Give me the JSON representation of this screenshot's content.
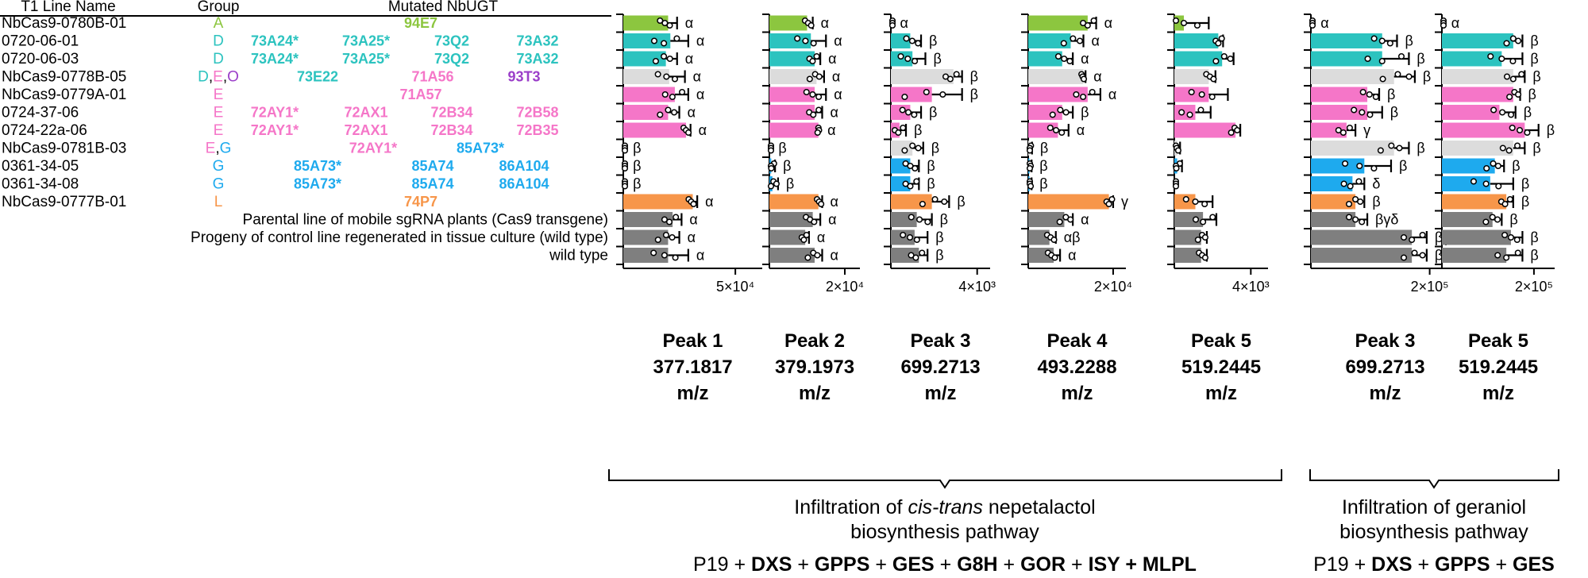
{
  "header": {
    "line_name": "T1 Line Name",
    "group": "Group",
    "mutated": "Mutated NbUGT"
  },
  "colors": {
    "A": "#8cc63f",
    "D": "#2cc3bf",
    "E": "#f576c8",
    "G": "#1eaaee",
    "L": "#f7964a",
    "O": "#9b3fc9",
    "light": "#dcdcdc",
    "dark": "#7f7f7f",
    "black": "#000000"
  },
  "rows": [
    {
      "name": "NbCas9-0780B-01",
      "group": [
        {
          "t": "A",
          "c": "A"
        }
      ],
      "genes": [
        {
          "t": "94E7",
          "c": "A"
        }
      ],
      "colorKey": "A"
    },
    {
      "name": "0720-06-01",
      "group": [
        {
          "t": "D",
          "c": "D"
        }
      ],
      "genes": [
        {
          "t": "73A24*",
          "c": "D"
        },
        {
          "t": "73A25*",
          "c": "D"
        },
        {
          "t": "73Q2",
          "c": "D"
        },
        {
          "t": "73A32",
          "c": "D"
        }
      ],
      "colorKey": "D"
    },
    {
      "name": "0720-06-03",
      "group": [
        {
          "t": "D",
          "c": "D"
        }
      ],
      "genes": [
        {
          "t": "73A24*",
          "c": "D"
        },
        {
          "t": "73A25*",
          "c": "D"
        },
        {
          "t": "73Q2",
          "c": "D"
        },
        {
          "t": "73A32",
          "c": "D"
        }
      ],
      "colorKey": "D"
    },
    {
      "name": "NbCas9-0778B-05",
      "group": [
        {
          "t": "D",
          "c": "D"
        },
        {
          "t": ",",
          "c": "black"
        },
        {
          "t": "E",
          "c": "E"
        },
        {
          "t": ",",
          "c": "black"
        },
        {
          "t": "O",
          "c": "O"
        }
      ],
      "genes": [
        {
          "t": "73E22",
          "c": "D"
        },
        {
          "t": "71A56",
          "c": "E"
        },
        {
          "t": "93T3",
          "c": "O"
        }
      ],
      "colorKey": "light"
    },
    {
      "name": "NbCas9-0779A-01",
      "group": [
        {
          "t": "E",
          "c": "E"
        }
      ],
      "genes": [
        {
          "t": "71A57",
          "c": "E"
        }
      ],
      "colorKey": "E"
    },
    {
      "name": "0724-37-06",
      "group": [
        {
          "t": "E",
          "c": "E"
        }
      ],
      "genes": [
        {
          "t": "72AY1*",
          "c": "E"
        },
        {
          "t": "72AX1",
          "c": "E"
        },
        {
          "t": "72B34",
          "c": "E"
        },
        {
          "t": "72B58",
          "c": "E"
        }
      ],
      "colorKey": "E"
    },
    {
      "name": "0724-22a-06",
      "group": [
        {
          "t": "E",
          "c": "E"
        }
      ],
      "genes": [
        {
          "t": "72AY1*",
          "c": "E"
        },
        {
          "t": "72AX1",
          "c": "E"
        },
        {
          "t": "72B34",
          "c": "E"
        },
        {
          "t": "72B35",
          "c": "E"
        }
      ],
      "colorKey": "E"
    },
    {
      "name": "NbCas9-0781B-03",
      "group": [
        {
          "t": "E",
          "c": "E"
        },
        {
          "t": ",",
          "c": "black"
        },
        {
          "t": "G",
          "c": "G"
        }
      ],
      "genes": [
        {
          "t": "72AY1*",
          "c": "E"
        },
        {
          "t": "85A73*",
          "c": "G"
        }
      ],
      "colorKey": "light"
    },
    {
      "name": "0361-34-05",
      "group": [
        {
          "t": "G",
          "c": "G"
        }
      ],
      "genes": [
        {
          "t": "85A73*",
          "c": "G"
        },
        {
          "t": "85A74",
          "c": "G"
        },
        {
          "t": "86A104",
          "c": "G"
        }
      ],
      "colorKey": "G"
    },
    {
      "name": "0361-34-08",
      "group": [
        {
          "t": "G",
          "c": "G"
        }
      ],
      "genes": [
        {
          "t": "85A73*",
          "c": "G"
        },
        {
          "t": "85A74",
          "c": "G"
        },
        {
          "t": "86A104",
          "c": "G"
        }
      ],
      "colorKey": "G"
    },
    {
      "name": "NbCas9-0777B-01",
      "group": [
        {
          "t": "L",
          "c": "L"
        }
      ],
      "genes": [
        {
          "t": "74P7",
          "c": "L"
        }
      ],
      "colorKey": "L"
    },
    {
      "name": "Parental line of mobile sgRNA plants (Cas9 transgene)",
      "group": [],
      "genes": [],
      "colorKey": "dark"
    },
    {
      "name": "Progeny of control line regenerated in tissue culture (wild type)",
      "group": [],
      "genes": [],
      "colorKey": "dark"
    },
    {
      "name": "wild type",
      "group": [],
      "genes": [],
      "colorKey": "dark"
    }
  ],
  "chart_data": [
    {
      "type": "bar",
      "orientation": "horizontal",
      "title": [
        "Peak 1",
        "377.1817",
        "m/z"
      ],
      "tick_label": "5×10⁴",
      "tick_value": 50000,
      "xlim": [
        0,
        62000
      ],
      "values": [
        20000,
        21000,
        19000,
        20500,
        23000,
        20000,
        28000,
        0,
        0,
        0,
        31000,
        22000,
        20000,
        20000
      ],
      "errors": [
        4000,
        8000,
        5000,
        7000,
        6000,
        5000,
        2000,
        0,
        0,
        0,
        2000,
        4000,
        5000,
        9000
      ],
      "letters": [
        "α",
        "α",
        "α",
        "α",
        "α",
        "α",
        "α",
        "β",
        "β",
        "β",
        "α",
        "α",
        "α",
        "α"
      ]
    },
    {
      "type": "bar",
      "orientation": "horizontal",
      "title": [
        "Peak 2",
        "379.1973",
        "m/z"
      ],
      "tick_label": "2×10⁴",
      "tick_value": 20000,
      "xlim": [
        0,
        24000
      ],
      "values": [
        10000,
        11000,
        12000,
        12500,
        12000,
        12000,
        13000,
        0,
        500,
        800,
        13000,
        11500,
        9500,
        12000
      ],
      "errors": [
        1500,
        4000,
        1500,
        2000,
        3000,
        2000,
        0,
        0,
        1000,
        1500,
        1000,
        2000,
        1000,
        2000
      ],
      "letters": [
        "α",
        "α",
        "α",
        "α",
        "α",
        "α",
        "α",
        "β",
        "β",
        "β",
        "α",
        "α",
        "α",
        "α"
      ]
    },
    {
      "type": "bar",
      "orientation": "horizontal",
      "title": [
        "Peak 3",
        "699.2713",
        "m/z"
      ],
      "tick_label": "4×10³",
      "tick_value": 4000,
      "xlim": [
        0,
        4600
      ],
      "values": [
        0,
        900,
        1000,
        2900,
        1900,
        900,
        400,
        1000,
        900,
        900,
        1900,
        1200,
        1100,
        1300
      ],
      "errors": [
        0,
        500,
        600,
        400,
        1400,
        500,
        300,
        500,
        400,
        400,
        800,
        700,
        600,
        400
      ],
      "letters": [
        "α",
        "β",
        "β",
        "β",
        "β",
        "β",
        "β",
        "β",
        "β",
        "β",
        "β",
        "β",
        "β",
        "β"
      ]
    },
    {
      "type": "bar",
      "orientation": "horizontal",
      "title": [
        "Peak 4",
        "493.2288",
        "m/z"
      ],
      "tick_label": "2×10⁴",
      "tick_value": 20000,
      "xlim": [
        0,
        23000
      ],
      "values": [
        14000,
        10000,
        8000,
        13000,
        14000,
        8000,
        7000,
        300,
        300,
        300,
        19000,
        8500,
        5000,
        6000
      ],
      "errors": [
        2000,
        3000,
        2500,
        500,
        3000,
        2500,
        2500,
        600,
        500,
        500,
        1000,
        2000,
        1500,
        1500
      ],
      "letters": [
        "α",
        "α",
        "α",
        "α",
        "α",
        "β",
        "α",
        "β",
        "β",
        "β",
        "γ",
        "α",
        "αβ",
        "α"
      ]
    },
    {
      "type": "bar",
      "orientation": "horizontal",
      "title": [
        "Peak 5",
        "519.2445",
        "m/z"
      ],
      "tick_label": "4×10³",
      "tick_value": 4000,
      "xlim": [
        0,
        4900
      ],
      "values": [
        500,
        2300,
        2500,
        1800,
        1800,
        1100,
        3200,
        150,
        150,
        0,
        1100,
        1500,
        1400,
        1400
      ],
      "errors": [
        1300,
        250,
        600,
        350,
        1000,
        800,
        250,
        150,
        250,
        0,
        900,
        700,
        300,
        300
      ],
      "letters": [
        "",
        "",
        "",
        "",
        "",
        "",
        "",
        "",
        "",
        "",
        "",
        "",
        "",
        ""
      ]
    },
    {
      "type": "bar",
      "orientation": "horizontal",
      "title": [
        "Peak 3",
        "699.2713",
        "m/z"
      ],
      "tick_label": "2×10⁵",
      "tick_value": 200000,
      "xlim": [
        0,
        250000
      ],
      "values": [
        0,
        120000,
        120000,
        140000,
        95000,
        95000,
        60000,
        140000,
        90000,
        70000,
        75000,
        75000,
        170000,
        170000
      ],
      "errors": [
        0,
        25000,
        45000,
        35000,
        20000,
        25000,
        15000,
        25000,
        45000,
        20000,
        15000,
        20000,
        25000,
        25000
      ],
      "letters": [
        "α",
        "β",
        "β",
        "β",
        "β",
        "β",
        "γ",
        "β",
        "β",
        "δ",
        "β",
        "βγδ",
        "βγδ",
        "β"
      ]
    },
    {
      "type": "bar",
      "orientation": "horizontal",
      "title": [
        "Peak 5",
        "519.2445",
        "m/z"
      ],
      "tick_label": "2×10⁵",
      "tick_value": 200000,
      "xlim": [
        0,
        245000
      ],
      "values": [
        0,
        155000,
        130000,
        155000,
        155000,
        125000,
        180000,
        155000,
        115000,
        105000,
        140000,
        110000,
        150000,
        140000
      ],
      "errors": [
        0,
        20000,
        45000,
        25000,
        15000,
        35000,
        30000,
        25000,
        20000,
        50000,
        15000,
        20000,
        25000,
        35000
      ],
      "letters": [
        "α",
        "β",
        "β",
        "β",
        "β",
        "β",
        "β",
        "β",
        "β",
        "β",
        "β",
        "β",
        "β",
        "β"
      ]
    }
  ],
  "brackets": [
    {
      "line1_pre": "Infiltration of ",
      "line1_italic": "cis-trans",
      "line1_post": " nepetalactol",
      "line2": "biosynthesis pathway",
      "genes": [
        {
          "t": "P19",
          "b": false
        },
        {
          "t": " + ",
          "b": false
        },
        {
          "t": "DXS",
          "b": true
        },
        {
          "t": " + ",
          "b": false
        },
        {
          "t": "GPPS",
          "b": true
        },
        {
          "t": " + ",
          "b": false
        },
        {
          "t": "GES",
          "b": true
        },
        {
          "t": " + ",
          "b": false
        },
        {
          "t": "G8H",
          "b": true
        },
        {
          "t": " + ",
          "b": false
        },
        {
          "t": "GOR",
          "b": true
        },
        {
          "t": " + ",
          "b": false
        },
        {
          "t": "ISY + MLPL",
          "b": true
        }
      ]
    },
    {
      "line1_pre": "Infiltration of geraniol",
      "line1_italic": "",
      "line1_post": "",
      "line2": "biosynthesis pathway",
      "genes": [
        {
          "t": "P19",
          "b": false
        },
        {
          "t": " + ",
          "b": false
        },
        {
          "t": "DXS",
          "b": true
        },
        {
          "t": " + ",
          "b": false
        },
        {
          "t": "GPPS",
          "b": true
        },
        {
          "t": " + ",
          "b": false
        },
        {
          "t": "GES",
          "b": true
        }
      ]
    }
  ]
}
